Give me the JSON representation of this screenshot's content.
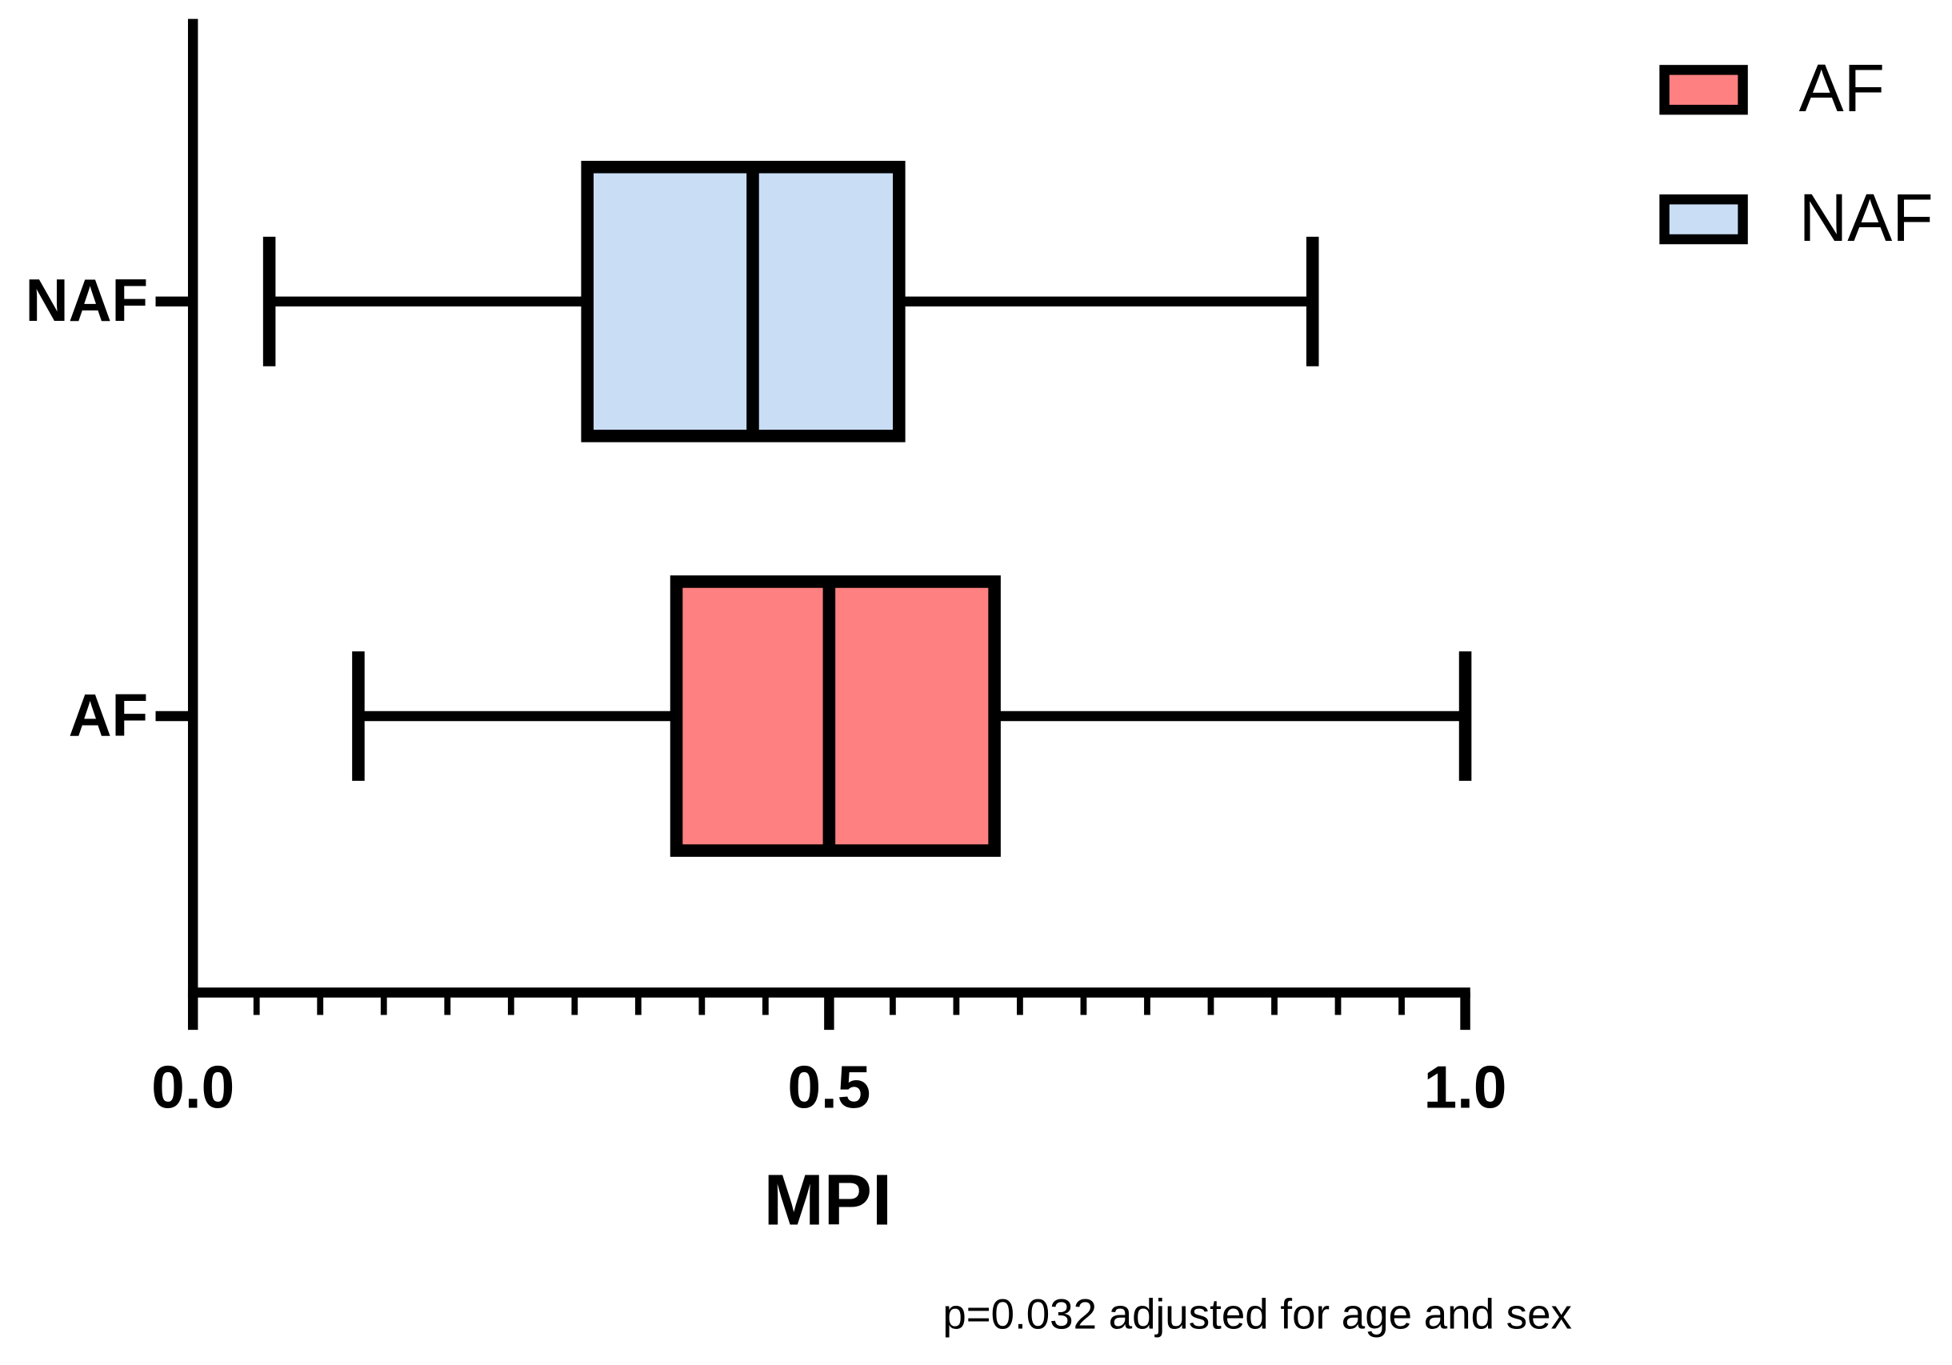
{
  "chart_data": {
    "type": "box",
    "orientation": "horizontal",
    "x_label": "MPI",
    "footnote": "p=0.032 adjusted for age and sex",
    "categories": [
      "NAF",
      "AF"
    ],
    "series": [
      {
        "name": "AF",
        "color": "#ff8080",
        "min": 0.13,
        "q1": 0.38,
        "median": 0.5,
        "q3": 0.63,
        "max": 1.0
      },
      {
        "name": "NAF",
        "color": "#c9ddf5",
        "min": 0.06,
        "q1": 0.31,
        "median": 0.44,
        "q3": 0.555,
        "max": 0.88
      }
    ],
    "xlim": [
      0,
      1
    ],
    "xticks": [
      {
        "value": 0,
        "label": "0.0"
      },
      {
        "value": 0.5,
        "label": "0.5"
      },
      {
        "value": 1,
        "label": "1.0"
      }
    ],
    "xminorticks": [
      0.05,
      0.1,
      0.15,
      0.2,
      0.25,
      0.3,
      0.35,
      0.4,
      0.45,
      0.55,
      0.6,
      0.65,
      0.7,
      0.75,
      0.8,
      0.85,
      0.9,
      0.95
    ],
    "legend": "top-right"
  }
}
